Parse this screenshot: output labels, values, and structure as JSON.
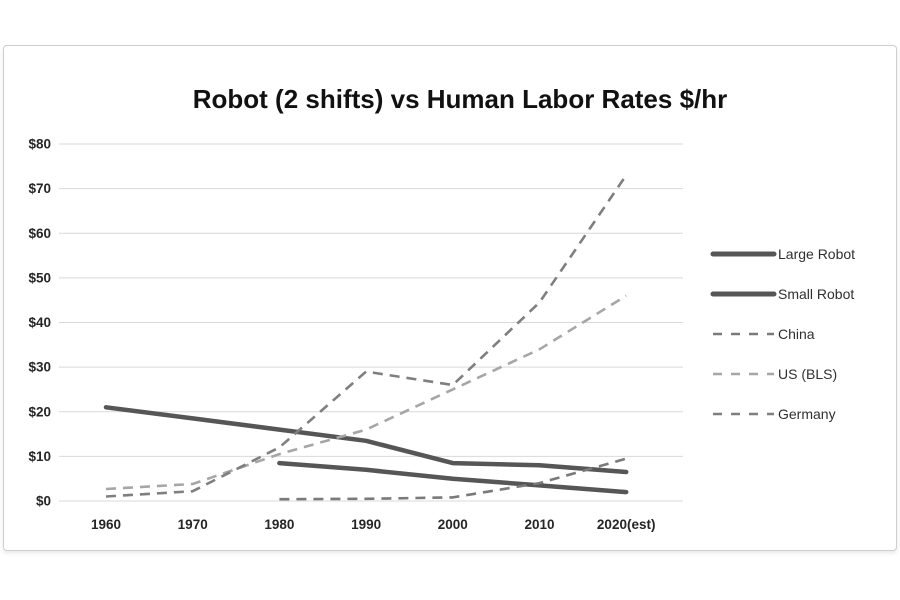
{
  "title": "Robot (2 shifts) vs Human Labor Rates $/hr",
  "chart_data": {
    "type": "line",
    "title": "Robot (2 shifts) vs Human Labor Rates $/hr",
    "xlabel": "",
    "ylabel": "",
    "ylim": [
      0,
      80
    ],
    "y_tick_step": 10,
    "y_tick_labels": [
      "$0",
      "$10",
      "$20",
      "$30",
      "$40",
      "$50",
      "$60",
      "$70",
      "$80"
    ],
    "categories": [
      "1960",
      "1970",
      "1980",
      "1990",
      "2000",
      "2010",
      "2020(est)"
    ],
    "grid": true,
    "legend_position": "right",
    "colors": {
      "grid": "#d9d9d9",
      "robot_line": "#565656",
      "china_line": "#7a7a7a",
      "us_line": "#a6a6a6",
      "germany_line": "#7f7f7f"
    },
    "series": [
      {
        "name": "Large Robot",
        "style": "solid",
        "color": "#565656",
        "width": 4.5,
        "values": [
          21,
          18.5,
          16,
          13.5,
          8.5,
          8,
          6.5
        ]
      },
      {
        "name": "Small Robot",
        "style": "solid",
        "color": "#565656",
        "width": 4.5,
        "values": [
          null,
          null,
          8.5,
          7,
          5,
          3.5,
          2
        ]
      },
      {
        "name": "China",
        "style": "dashed",
        "color": "#7a7a7a",
        "width": 2.6,
        "values": [
          null,
          null,
          0.4,
          0.5,
          0.8,
          4,
          9.5
        ]
      },
      {
        "name": "US (BLS)",
        "style": "dashed",
        "color": "#a6a6a6",
        "width": 2.6,
        "values": [
          2.7,
          3.8,
          10.5,
          16,
          25,
          34,
          46
        ]
      },
      {
        "name": "Germany",
        "style": "dashed",
        "color": "#7f7f7f",
        "width": 2.6,
        "values": [
          1,
          2.2,
          12,
          29,
          26,
          44.5,
          73
        ]
      }
    ]
  }
}
